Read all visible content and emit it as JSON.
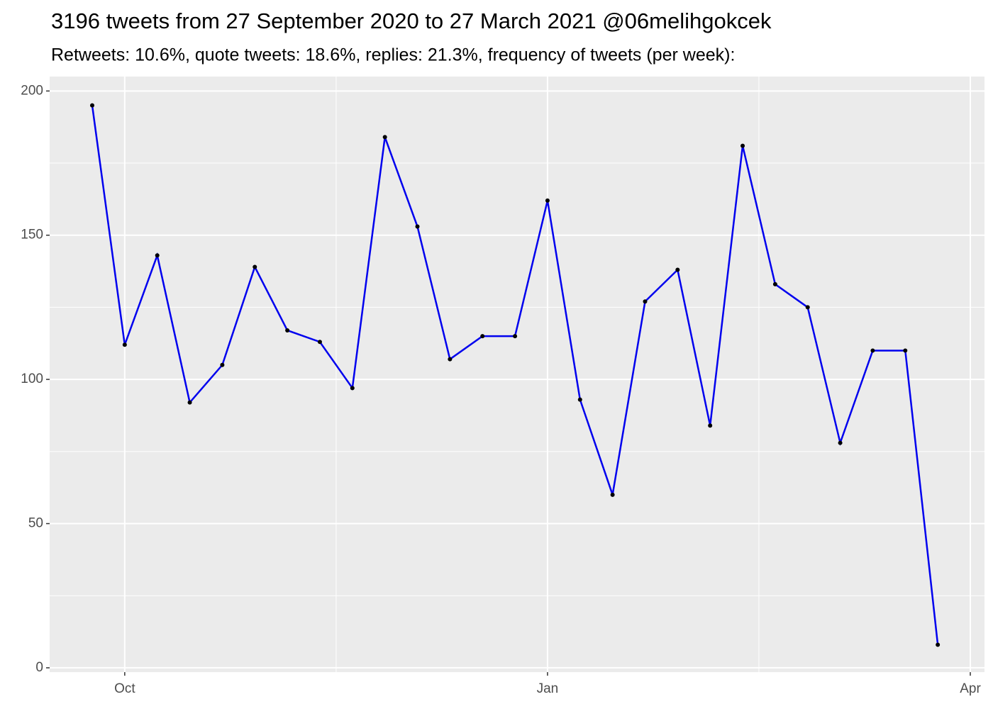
{
  "chart_data": {
    "type": "line",
    "title": "3196 tweets from 27 September 2020 to 27 March 2021 @06melihgokcek",
    "subtitle": "Retweets: 10.6%, quote tweets: 18.6%, replies: 21.3%, frequency of tweets (per week):",
    "categories": [
      null,
      "Oct",
      null,
      null,
      null,
      null,
      null,
      null,
      null,
      null,
      null,
      null,
      null,
      null,
      "Jan",
      null,
      null,
      null,
      null,
      null,
      null,
      null,
      null,
      null,
      null,
      null,
      null,
      "Apr"
    ],
    "values": [
      195,
      112,
      143,
      92,
      105,
      139,
      117,
      113,
      97,
      184,
      153,
      107,
      115,
      115,
      162,
      93,
      60,
      127,
      138,
      84,
      181,
      133,
      125,
      78,
      110,
      110,
      8,
      null
    ],
    "color": "#0000ee",
    "marker_color": "#000000",
    "ylim": [
      -1.5,
      205
    ],
    "yticks": [
      0,
      50,
      100,
      150,
      200
    ],
    "grid": true
  }
}
